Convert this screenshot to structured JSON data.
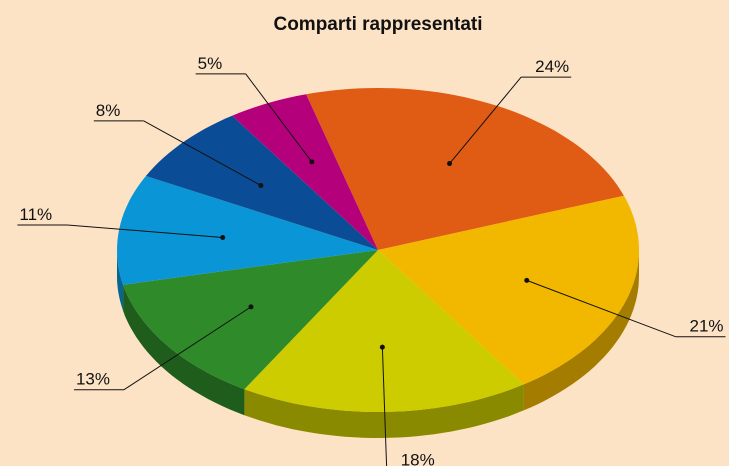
{
  "chart_data": {
    "type": "pie",
    "title": "Comparti rappresentati",
    "categories": [
      null,
      null,
      null,
      null,
      null,
      null,
      null
    ],
    "values": [
      24,
      21,
      18,
      13,
      11,
      8,
      5
    ],
    "value_labels": [
      "24%",
      "21%",
      "18%",
      "13%",
      "11%",
      "8%",
      "5%"
    ],
    "colors": [
      "#e05c14",
      "#f2b800",
      "#cccc00",
      "#2f8a2a",
      "#0a96d6",
      "#0b4c96",
      "#b5007c"
    ]
  }
}
